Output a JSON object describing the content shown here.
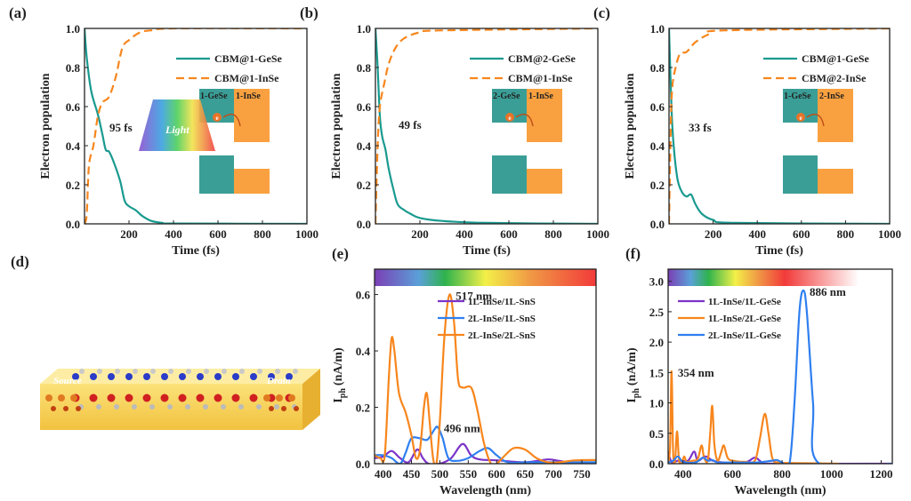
{
  "colors": {
    "teal": "#1a9a8f",
    "orange": "#f7861d",
    "purple": "#7b33c9",
    "blue": "#2f7ff0",
    "inset_teal": "#3a9e96",
    "inset_orange": "#f9a140"
  },
  "chart_data": [
    {
      "panel": "(a)",
      "type": "line",
      "xlabel": "Time (fs)",
      "ylabel": "Electron population",
      "xlim": [
        0,
        1000
      ],
      "ylim": [
        0,
        1
      ],
      "xticks": [
        200,
        400,
        600,
        800,
        1000
      ],
      "yticks": [
        0.0,
        0.2,
        0.4,
        0.6,
        0.8,
        1.0
      ],
      "annotation": "95 fs",
      "inset": {
        "left": "1-GeSe",
        "right": "1-InSe",
        "electron": "e"
      },
      "series": [
        {
          "name": "CBM@1-GeSe",
          "color": "#1a9a8f",
          "dash": false,
          "points": [
            [
              0,
              1
            ],
            [
              10,
              0.85
            ],
            [
              30,
              0.68
            ],
            [
              60,
              0.56
            ],
            [
              80,
              0.46
            ],
            [
              95,
              0.38
            ],
            [
              110,
              0.37
            ],
            [
              130,
              0.32
            ],
            [
              160,
              0.22
            ],
            [
              180,
              0.12
            ],
            [
              200,
              0.09
            ],
            [
              230,
              0.07
            ],
            [
              260,
              0.04
            ],
            [
              300,
              0.015
            ],
            [
              350,
              0.005
            ],
            [
              400,
              0.002
            ],
            [
              1000,
              0
            ]
          ]
        },
        {
          "name": "CBM@1-InSe",
          "color": "#f7861d",
          "dash": true,
          "points": [
            [
              0,
              0
            ],
            [
              10,
              0.05
            ],
            [
              20,
              0.3
            ],
            [
              40,
              0.4
            ],
            [
              60,
              0.55
            ],
            [
              80,
              0.62
            ],
            [
              110,
              0.65
            ],
            [
              140,
              0.75
            ],
            [
              170,
              0.9
            ],
            [
              200,
              0.94
            ],
            [
              250,
              0.98
            ],
            [
              300,
              0.99
            ],
            [
              400,
              1
            ],
            [
              1000,
              1
            ]
          ]
        }
      ]
    },
    {
      "panel": "(b)",
      "type": "line",
      "xlabel": "Time (fs)",
      "ylabel": "Electron population",
      "xlim": [
        0,
        1000
      ],
      "ylim": [
        0,
        1
      ],
      "xticks": [
        200,
        400,
        600,
        800,
        1000
      ],
      "yticks": [
        0.0,
        0.2,
        0.4,
        0.6,
        0.8,
        1.0
      ],
      "annotation": "49 fs",
      "inset": {
        "left": "2-GeSe",
        "right": "1-InSe",
        "electron": "e"
      },
      "series": [
        {
          "name": "CBM@2-GeSe",
          "color": "#1a9a8f",
          "dash": false,
          "points": [
            [
              0,
              1
            ],
            [
              10,
              0.8
            ],
            [
              20,
              0.55
            ],
            [
              30,
              0.45
            ],
            [
              45,
              0.38
            ],
            [
              60,
              0.28
            ],
            [
              80,
              0.18
            ],
            [
              100,
              0.1
            ],
            [
              130,
              0.07
            ],
            [
              160,
              0.05
            ],
            [
              200,
              0.03
            ],
            [
              300,
              0.015
            ],
            [
              500,
              0.005
            ],
            [
              1000,
              0
            ]
          ]
        },
        {
          "name": "CBM@1-InSe",
          "color": "#f7861d",
          "dash": true,
          "points": [
            [
              0,
              0
            ],
            [
              10,
              0.4
            ],
            [
              20,
              0.6
            ],
            [
              40,
              0.72
            ],
            [
              60,
              0.82
            ],
            [
              90,
              0.9
            ],
            [
              130,
              0.95
            ],
            [
              200,
              0.98
            ],
            [
              300,
              0.99
            ],
            [
              1000,
              1
            ]
          ]
        }
      ]
    },
    {
      "panel": "(c)",
      "type": "line",
      "xlabel": "Time (fs)",
      "ylabel": "Electron population",
      "xlim": [
        0,
        1000
      ],
      "ylim": [
        0,
        1
      ],
      "xticks": [
        200,
        400,
        600,
        800,
        1000
      ],
      "yticks": [
        0.0,
        0.2,
        0.4,
        0.6,
        0.8,
        1.0
      ],
      "annotation": "33 fs",
      "inset": {
        "left": "1-GeSe",
        "right": "2-InSe",
        "electron": "e"
      },
      "series": [
        {
          "name": "CBM@1-GeSe",
          "color": "#1a9a8f",
          "dash": false,
          "points": [
            [
              0,
              1
            ],
            [
              8,
              0.7
            ],
            [
              15,
              0.5
            ],
            [
              25,
              0.35
            ],
            [
              40,
              0.22
            ],
            [
              60,
              0.16
            ],
            [
              80,
              0.14
            ],
            [
              100,
              0.15
            ],
            [
              120,
              0.1
            ],
            [
              150,
              0.05
            ],
            [
              200,
              0.02
            ],
            [
              300,
              0.005
            ],
            [
              1000,
              0
            ]
          ]
        },
        {
          "name": "CBM@2-InSe",
          "color": "#f7861d",
          "dash": true,
          "points": [
            [
              0,
              0
            ],
            [
              8,
              0.5
            ],
            [
              15,
              0.7
            ],
            [
              30,
              0.8
            ],
            [
              50,
              0.87
            ],
            [
              80,
              0.88
            ],
            [
              120,
              0.93
            ],
            [
              180,
              0.97
            ],
            [
              250,
              0.99
            ],
            [
              1000,
              1
            ]
          ]
        }
      ]
    },
    {
      "panel": "(e)",
      "type": "line",
      "xlabel": "Wavelength (nm)",
      "ylabel_main": "I",
      "ylabel_sub": "ph",
      "ylabel_unit": "(nA/m)",
      "xlim": [
        385,
        775
      ],
      "ylim": [
        0,
        0.69
      ],
      "xticks": [
        400,
        450,
        500,
        550,
        600,
        650,
        700,
        750
      ],
      "yticks": [
        0.0,
        0.2,
        0.4,
        0.6
      ],
      "spectrum_bar": "visible",
      "annotations": [
        {
          "text": "517 nm",
          "x": 517,
          "y": 0.6
        },
        {
          "text": "496 nm",
          "x": 496,
          "y": 0.13
        }
      ],
      "series": [
        {
          "name": "1L-InSe/1L-SnS",
          "color": "#7b33c9",
          "points": [
            [
              385,
              0.02
            ],
            [
              400,
              0.025
            ],
            [
              415,
              0.045
            ],
            [
              430,
              0.02
            ],
            [
              445,
              0.005
            ],
            [
              460,
              0.05
            ],
            [
              470,
              0.02
            ],
            [
              480,
              0
            ],
            [
              500,
              0
            ],
            [
              520,
              0.02
            ],
            [
              540,
              0.07
            ],
            [
              555,
              0.03
            ],
            [
              570,
              0.015
            ],
            [
              600,
              0.012
            ],
            [
              650,
              0.005
            ],
            [
              690,
              0.015
            ],
            [
              710,
              0.01
            ],
            [
              740,
              0
            ],
            [
              775,
              0
            ]
          ]
        },
        {
          "name": "2L-InSe/1L-SnS",
          "color": "#2f7ff0",
          "points": [
            [
              385,
              0.03
            ],
            [
              400,
              0.03
            ],
            [
              415,
              0.02
            ],
            [
              430,
              0
            ],
            [
              440,
              0.04
            ],
            [
              450,
              0.09
            ],
            [
              465,
              0.09
            ],
            [
              478,
              0.085
            ],
            [
              490,
              0.12
            ],
            [
              496,
              0.13
            ],
            [
              505,
              0.09
            ],
            [
              515,
              0.02
            ],
            [
              530,
              0.01
            ],
            [
              550,
              0.02
            ],
            [
              570,
              0.045
            ],
            [
              585,
              0.055
            ],
            [
              600,
              0.03
            ],
            [
              620,
              0.005
            ],
            [
              660,
              0.005
            ],
            [
              775,
              0.005
            ]
          ]
        },
        {
          "name": "2L-InSe/2L-SnS",
          "color": "#f7861d",
          "points": [
            [
              385,
              0.03
            ],
            [
              395,
              0.02
            ],
            [
              403,
              0.03
            ],
            [
              410,
              0.3
            ],
            [
              415,
              0.445
            ],
            [
              420,
              0.4
            ],
            [
              428,
              0.25
            ],
            [
              440,
              0.18
            ],
            [
              450,
              0.1
            ],
            [
              458,
              0.02
            ],
            [
              465,
              0.05
            ],
            [
              472,
              0.2
            ],
            [
              477,
              0.25
            ],
            [
              482,
              0.15
            ],
            [
              488,
              0.02
            ],
            [
              494,
              0
            ],
            [
              500,
              0.15
            ],
            [
              508,
              0.45
            ],
            [
              517,
              0.6
            ],
            [
              525,
              0.5
            ],
            [
              532,
              0.3
            ],
            [
              540,
              0.27
            ],
            [
              555,
              0.27
            ],
            [
              565,
              0.2
            ],
            [
              578,
              0.07
            ],
            [
              590,
              0
            ],
            [
              600,
              0
            ],
            [
              615,
              0.03
            ],
            [
              630,
              0.055
            ],
            [
              650,
              0.05
            ],
            [
              670,
              0.02
            ],
            [
              690,
              0.005
            ],
            [
              710,
              0.005
            ],
            [
              740,
              0.012
            ],
            [
              775,
              0.013
            ]
          ]
        }
      ]
    },
    {
      "panel": "(f)",
      "type": "line",
      "xlabel": "Wavelength (nm)",
      "ylabel_main": "I",
      "ylabel_sub": "ph",
      "ylabel_unit": "(nA/m)",
      "xlim": [
        340,
        1245
      ],
      "ylim": [
        0,
        3.2
      ],
      "xticks": [
        400,
        600,
        800,
        1000,
        1200
      ],
      "yticks": [
        0.0,
        0.5,
        1.0,
        1.5,
        2.0,
        2.5,
        3.0
      ],
      "spectrum_bar": "visible-to-nir",
      "annotations": [
        {
          "text": "886 nm",
          "x": 886,
          "y": 2.85
        },
        {
          "text": "354 nm",
          "x": 354,
          "y": 1.52
        }
      ],
      "series": [
        {
          "name": "1L-InSe/1L-GeSe",
          "color": "#7b33c9",
          "points": [
            [
              340,
              0.2
            ],
            [
              355,
              0.02
            ],
            [
              380,
              0.05
            ],
            [
              420,
              0.05
            ],
            [
              445,
              0.2
            ],
            [
              460,
              0.05
            ],
            [
              490,
              0.12
            ],
            [
              520,
              0.05
            ],
            [
              560,
              0.02
            ],
            [
              650,
              0.02
            ],
            [
              690,
              0.1
            ],
            [
              720,
              0.02
            ],
            [
              760,
              0
            ],
            [
              1245,
              0
            ]
          ]
        },
        {
          "name": "1L-InSe/2L-GeSe",
          "color": "#f7861d",
          "points": [
            [
              340,
              0
            ],
            [
              348,
              0.3
            ],
            [
              354,
              1.52
            ],
            [
              360,
              0.2
            ],
            [
              368,
              0.05
            ],
            [
              376,
              0.53
            ],
            [
              384,
              0.05
            ],
            [
              395,
              0.02
            ],
            [
              405,
              0.12
            ],
            [
              415,
              0.03
            ],
            [
              440,
              0.05
            ],
            [
              460,
              0.08
            ],
            [
              475,
              0.3
            ],
            [
              485,
              0.1
            ],
            [
              500,
              0.05
            ],
            [
              510,
              0.5
            ],
            [
              518,
              0.95
            ],
            [
              527,
              0.3
            ],
            [
              540,
              0.05
            ],
            [
              555,
              0.2
            ],
            [
              565,
              0.3
            ],
            [
              580,
              0.1
            ],
            [
              600,
              0.05
            ],
            [
              650,
              0.03
            ],
            [
              690,
              0.05
            ],
            [
              710,
              0.4
            ],
            [
              730,
              0.82
            ],
            [
              745,
              0.5
            ],
            [
              760,
              0.1
            ],
            [
              780,
              0.02
            ],
            [
              850,
              0.01
            ],
            [
              1030,
              0
            ]
          ]
        },
        {
          "name": "2L-InSe/1L-GeSe",
          "color": "#2f7ff0",
          "points": [
            [
              340,
              0.02
            ],
            [
              360,
              0.05
            ],
            [
              380,
              0.12
            ],
            [
              400,
              0.03
            ],
            [
              450,
              0.02
            ],
            [
              480,
              0.1
            ],
            [
              500,
              0.05
            ],
            [
              520,
              0.06
            ],
            [
              540,
              0.02
            ],
            [
              600,
              0.02
            ],
            [
              700,
              0.02
            ],
            [
              760,
              0.05
            ],
            [
              780,
              0.06
            ],
            [
              800,
              0.02
            ],
            [
              830,
              0
            ],
            [
              850,
              1.0
            ],
            [
              870,
              2.5
            ],
            [
              886,
              2.85
            ],
            [
              900,
              2.5
            ],
            [
              925,
              1.0
            ],
            [
              950,
              0
            ],
            [
              1245,
              0
            ]
          ]
        }
      ]
    }
  ],
  "panel_d": {
    "label": "(d)",
    "source": "Source",
    "light": "Light",
    "drain": "Drain"
  }
}
